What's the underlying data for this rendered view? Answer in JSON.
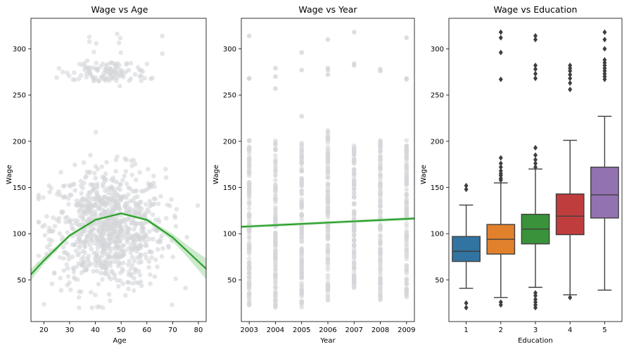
{
  "colors": {
    "scatter": "#d3d6d9",
    "fit": "#2ca02c",
    "band": "#b8e0b8",
    "box_edge": "#3f3f3f",
    "box_fills": [
      "#3274a1",
      "#e1812c",
      "#3a923a",
      "#c03d3e",
      "#9372b2"
    ]
  },
  "chart_data": [
    {
      "type": "scatter",
      "title": "Wage vs Age",
      "xlabel": "Age",
      "ylabel": "Wage",
      "xlim": [
        15,
        83
      ],
      "ylim": [
        5,
        333
      ],
      "xticks": [
        20,
        30,
        40,
        50,
        60,
        70,
        80
      ],
      "yticks": [
        50,
        100,
        150,
        200,
        250,
        300
      ],
      "grid": false,
      "fit": {
        "kind": "quadratic",
        "points": [
          [
            15,
            56
          ],
          [
            20,
            71
          ],
          [
            30,
            98
          ],
          [
            40,
            115
          ],
          [
            50,
            122
          ],
          [
            60,
            115
          ],
          [
            70,
            96
          ],
          [
            83,
            62
          ]
        ]
      },
      "clusters": [
        {
          "x_range": [
            18,
            80
          ],
          "y_range": [
            20,
            212
          ],
          "count": 900,
          "center_x": 45,
          "center_y": 105
        },
        {
          "x_range": [
            25,
            66
          ],
          "y_range": [
            255,
            318
          ],
          "count": 120,
          "center_x": 45,
          "center_y": 275
        }
      ]
    },
    {
      "type": "scatter",
      "title": "Wage vs Year",
      "xlabel": "Year",
      "ylabel": "Wage",
      "xlim": [
        2002.7,
        2009.3
      ],
      "ylim": [
        5,
        333
      ],
      "xticks": [
        2003,
        2004,
        2005,
        2006,
        2007,
        2008,
        2009
      ],
      "yticks": [
        50,
        100,
        150,
        200,
        250,
        300
      ],
      "grid": false,
      "fit": {
        "kind": "linear",
        "points": [
          [
            2002.7,
            107.5
          ],
          [
            2009.3,
            116.5
          ]
        ]
      },
      "columns": [
        {
          "x": 2003,
          "low": 22,
          "high": 201,
          "outliers": [
            268,
            268,
            314
          ]
        },
        {
          "x": 2004,
          "low": 20,
          "high": 201,
          "outliers": [
            257,
            270,
            279
          ]
        },
        {
          "x": 2005,
          "low": 20,
          "high": 201,
          "outliers": [
            227,
            277,
            296
          ]
        },
        {
          "x": 2006,
          "low": 27,
          "high": 212,
          "outliers": [
            272,
            277,
            279,
            310
          ]
        },
        {
          "x": 2007,
          "low": 41,
          "high": 201,
          "outliers": [
            282,
            284,
            318
          ]
        },
        {
          "x": 2008,
          "low": 28,
          "high": 201,
          "outliers": [
            276,
            278
          ]
        },
        {
          "x": 2009,
          "low": 30,
          "high": 201,
          "outliers": [
            267,
            268,
            312
          ]
        }
      ]
    },
    {
      "type": "box",
      "title": "Wage vs Education",
      "xlabel": "Education",
      "ylabel": "Wage",
      "categories": [
        "1",
        "2",
        "3",
        "4",
        "5"
      ],
      "ylim": [
        5,
        333
      ],
      "yticks": [
        50,
        100,
        150,
        200,
        250,
        300
      ],
      "grid": false,
      "boxes": [
        {
          "min": 41,
          "q1": 70,
          "median": 81,
          "q3": 97,
          "max": 131,
          "outliers": [
            20,
            25,
            148,
            152
          ]
        },
        {
          "min": 31,
          "q1": 78,
          "median": 94,
          "q3": 110,
          "max": 155,
          "outliers": [
            23,
            26,
            158,
            160,
            163,
            165,
            168,
            172,
            176,
            182,
            267,
            296,
            312,
            318
          ]
        },
        {
          "min": 42,
          "q1": 89,
          "median": 105,
          "q3": 121,
          "max": 170,
          "outliers": [
            20,
            23,
            26,
            29,
            33,
            36,
            172,
            176,
            180,
            185,
            193,
            268,
            273,
            278,
            282,
            310,
            314
          ]
        },
        {
          "min": 34,
          "q1": 99,
          "median": 119,
          "q3": 143,
          "max": 201,
          "outliers": [
            31,
            256,
            263,
            268,
            272,
            276,
            279,
            282
          ]
        },
        {
          "min": 39,
          "q1": 117,
          "median": 142,
          "q3": 172,
          "max": 227,
          "outliers": [
            267,
            270,
            273,
            276,
            279,
            282,
            285,
            288,
            300,
            310,
            318
          ]
        }
      ]
    }
  ]
}
